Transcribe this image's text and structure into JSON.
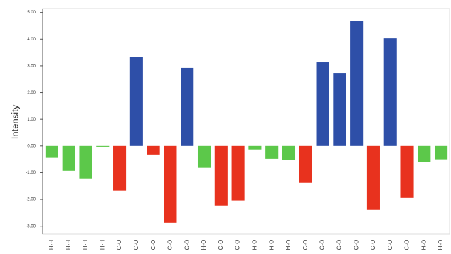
{
  "chart_data": {
    "type": "bar",
    "y_label": "Intensity",
    "categories": [
      "H-H",
      "H-H",
      "H-H",
      "H-H",
      "C-O",
      "C-O",
      "C-O",
      "C-O",
      "C-O",
      "H-O",
      "C-O",
      "C-O",
      "H-O",
      "H-O",
      "H-O",
      "C-O",
      "C-O",
      "C-O",
      "C-O",
      "C-O",
      "C-O",
      "C-O",
      "H-O",
      "H-O"
    ],
    "values": [
      -0.42,
      -0.93,
      -1.22,
      -0.03,
      -1.67,
      3.34,
      -0.32,
      -2.87,
      2.92,
      -0.82,
      -2.23,
      -2.04,
      -0.13,
      -0.48,
      -0.53,
      -1.38,
      3.13,
      2.73,
      4.69,
      -2.39,
      4.03,
      -1.94,
      -0.61,
      -0.5
    ],
    "colors": [
      "#5cc84a",
      "#5cc84a",
      "#5cc84a",
      "#5cc84a",
      "#e8321e",
      "#2e4fa8",
      "#e8321e",
      "#e8321e",
      "#2e4fa8",
      "#5cc84a",
      "#e8321e",
      "#e8321e",
      "#5cc84a",
      "#5cc84a",
      "#5cc84a",
      "#e8321e",
      "#2e4fa8",
      "#2e4fa8",
      "#2e4fa8",
      "#e8321e",
      "#2e4fa8",
      "#e8321e",
      "#5cc84a",
      "#5cc84a"
    ],
    "ylim": [
      -3.3,
      5.15
    ],
    "yticks": [
      {
        "value": 5,
        "label": "5.00"
      },
      {
        "value": 4,
        "label": "4.00"
      },
      {
        "value": 3,
        "label": "3.00"
      },
      {
        "value": 2,
        "label": "2.00"
      },
      {
        "value": 1,
        "label": "1.00"
      },
      {
        "value": 0,
        "label": "0.00"
      },
      {
        "value": -1,
        "label": "-1.00"
      },
      {
        "value": -2,
        "label": "-2.00"
      },
      {
        "value": -3,
        "label": "-3.00"
      }
    ],
    "grid": false
  }
}
